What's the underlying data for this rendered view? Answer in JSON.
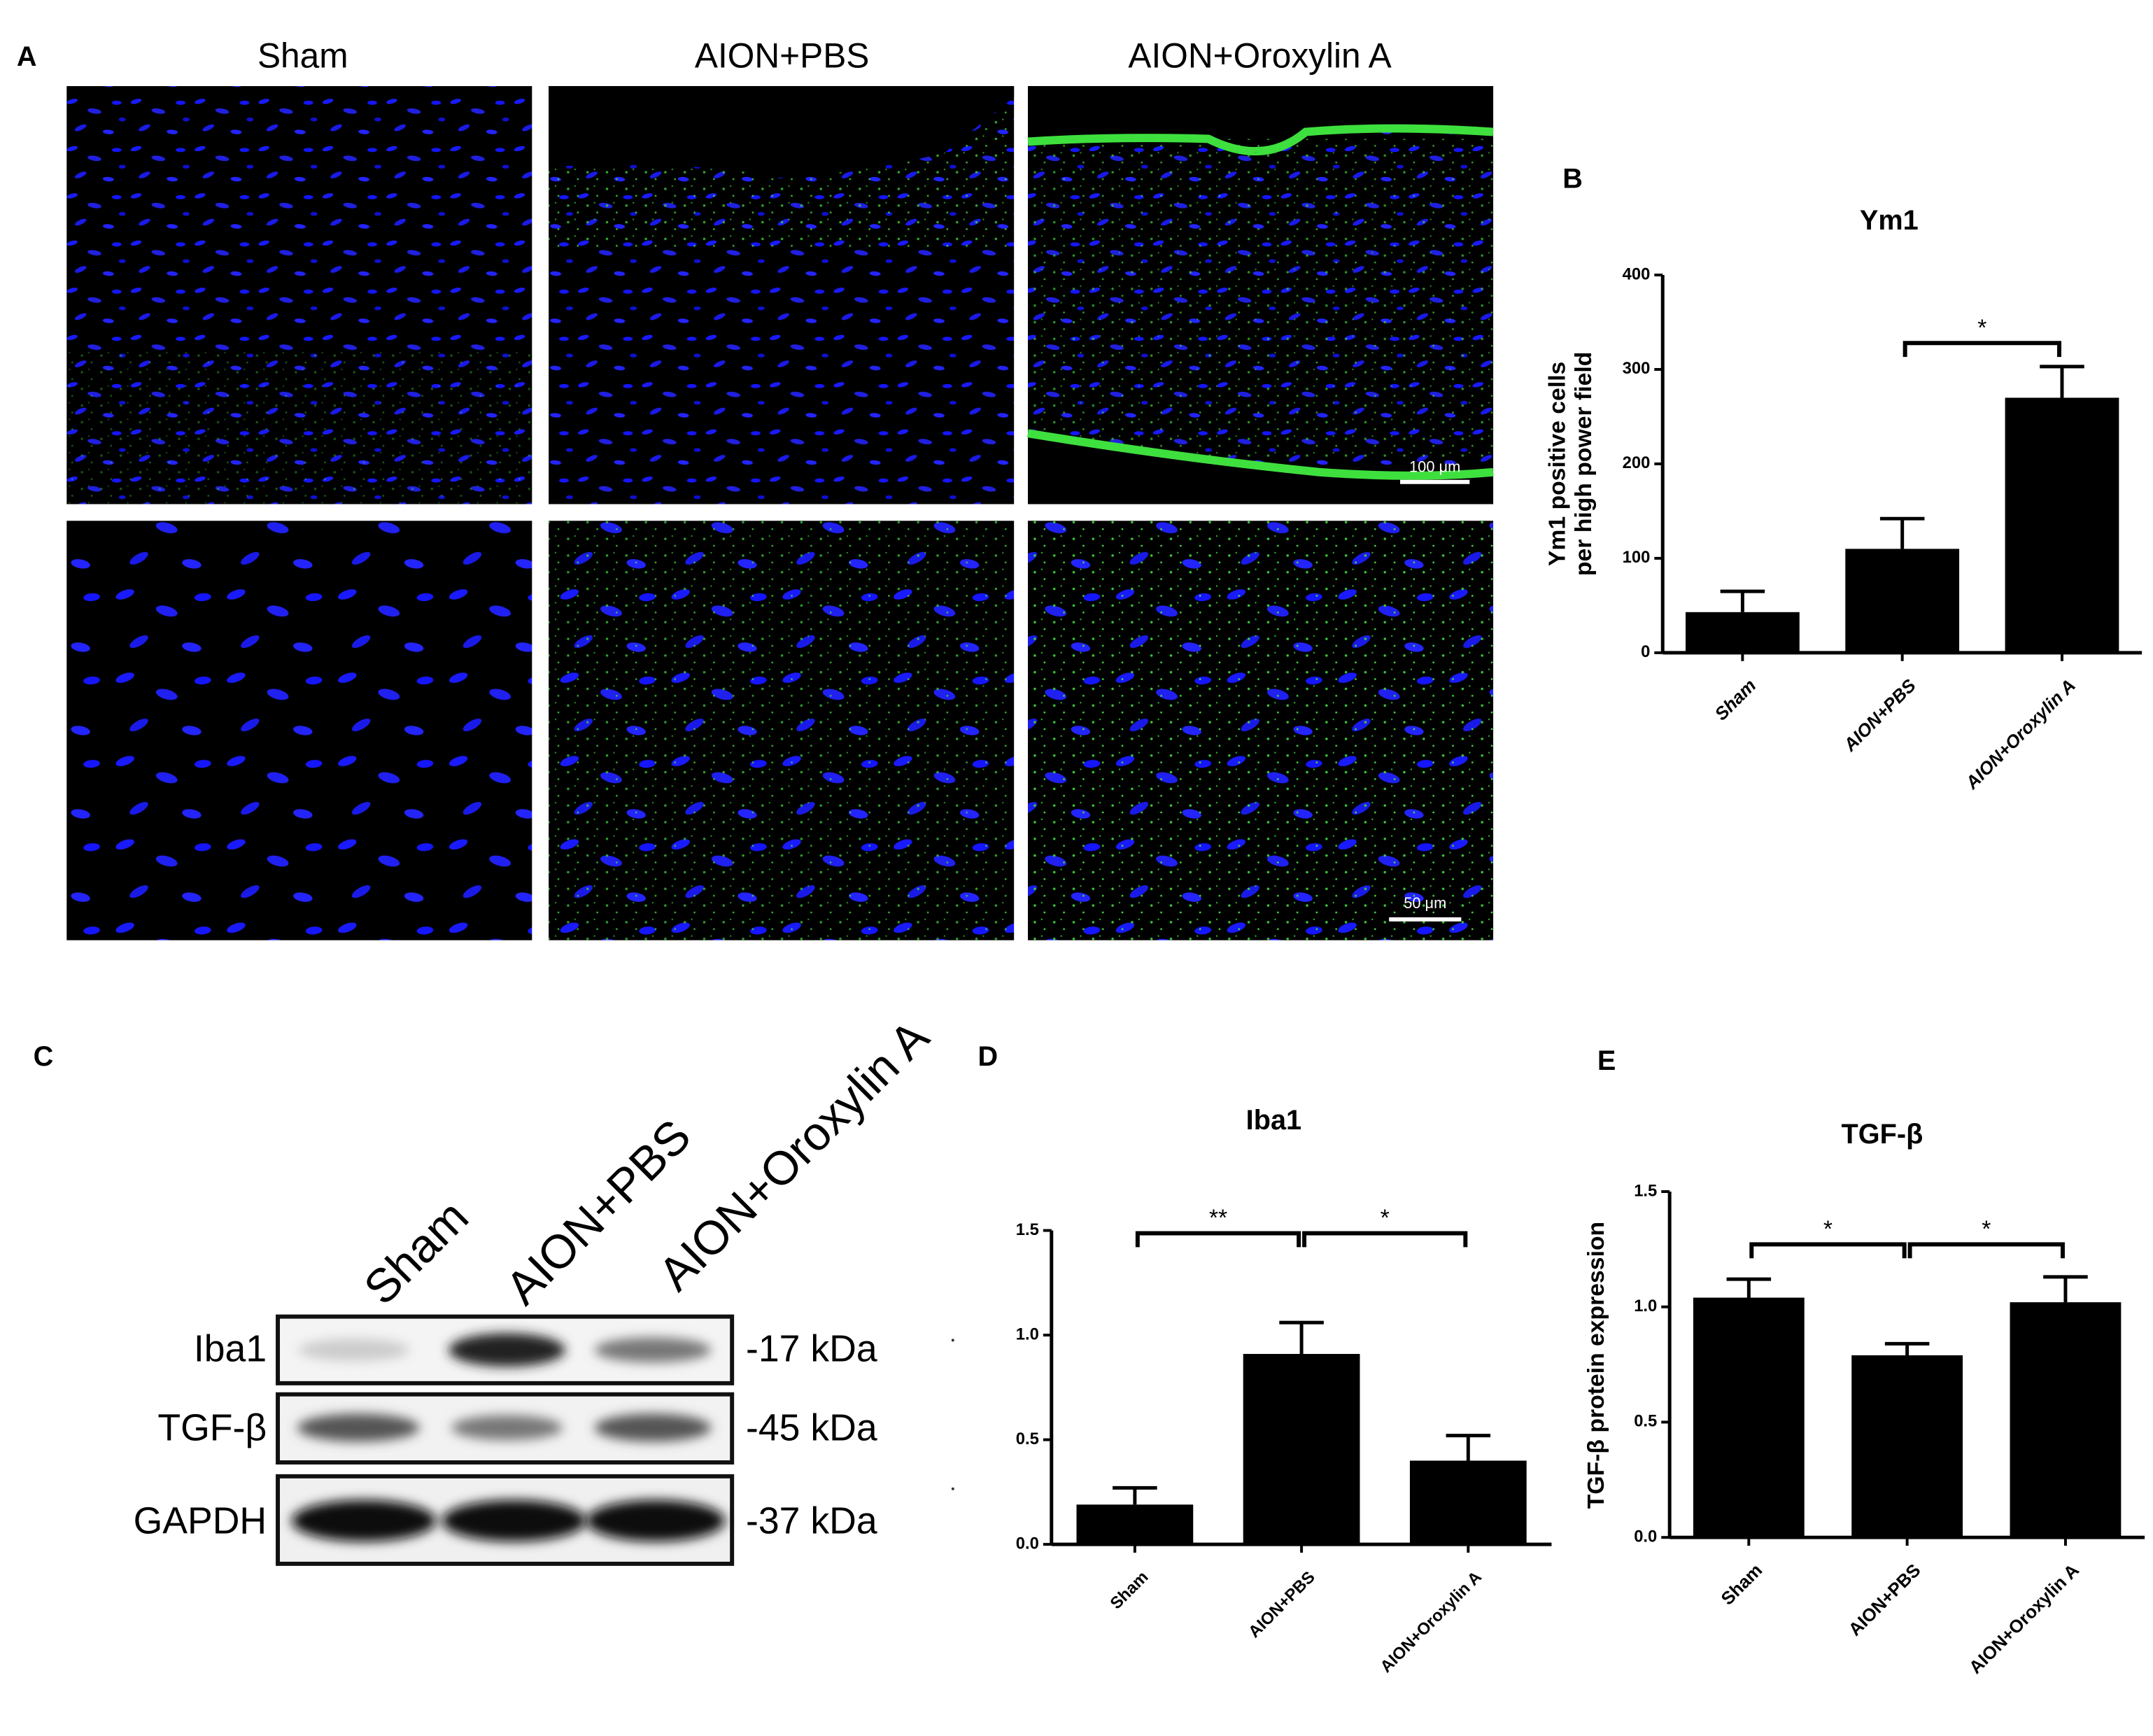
{
  "panel_labels": [
    "A",
    "B",
    "C",
    "D",
    "E"
  ],
  "microscopy": {
    "columns": [
      "Sham",
      "AION+PBS",
      "AION+Oroxylin A"
    ],
    "scale_bars": [
      "100 μm",
      "50 μm"
    ]
  },
  "western_blot": {
    "lanes": [
      "Sham",
      "AION+PBS",
      "AION+Oroxylin A"
    ],
    "rows": [
      {
        "protein": "Iba1",
        "size": "-17 kDa"
      },
      {
        "protein": "TGF-β",
        "size": "-45 kDa"
      },
      {
        "protein": "GAPDH",
        "size": "-37 kDa"
      }
    ]
  },
  "chart_data": [
    {
      "type": "bar",
      "title": "Ym1",
      "y_label": [
        "Ym1 positive cells",
        "per high power field"
      ],
      "categories": [
        "Sham",
        "AION+PBS",
        "AION+Oroxylin A"
      ],
      "values": [
        43,
        110,
        270
      ],
      "errors": [
        22,
        32,
        33
      ],
      "color": "#000000",
      "ylim": [
        0,
        400
      ],
      "yticks": [
        0,
        100,
        200,
        300,
        400
      ],
      "significance": [
        {
          "groups": [
            "AION+PBS",
            "AION+Oroxylin A"
          ],
          "label": "*"
        }
      ]
    },
    {
      "type": "bar",
      "title": "Iba1",
      "categories": [
        "Sham",
        "AION+PBS",
        "AION+Oroxylin A"
      ],
      "values": [
        0.19,
        0.91,
        0.4
      ],
      "errors": [
        0.08,
        0.15,
        0.12
      ],
      "color": "#000000",
      "ylim": [
        0,
        1.5
      ],
      "yticks": [
        {
          "value": 0,
          "label": "0.0"
        },
        0.5,
        {
          "value": 1,
          "label": "1.0"
        },
        1.5
      ],
      "significance": [
        {
          "groups": [
            "Sham",
            "AION+PBS"
          ],
          "label": "**"
        },
        {
          "groups": [
            "AION+PBS",
            "AION+Oroxylin A"
          ],
          "label": "*"
        }
      ]
    },
    {
      "type": "bar",
      "title": "TGF-β",
      "y_label": [
        "TGF-β protein expression"
      ],
      "categories": [
        "Sham",
        "AION+PBS",
        "AION+Oroxylin A"
      ],
      "values": [
        1.04,
        0.79,
        1.02
      ],
      "errors": [
        0.08,
        0.05,
        0.11
      ],
      "color": "#000000",
      "ylim": [
        0,
        1.5
      ],
      "yticks": [
        {
          "value": 0,
          "label": "0.0"
        },
        0.5,
        {
          "value": 1,
          "label": "1.0"
        },
        1.5
      ],
      "significance": [
        {
          "groups": [
            "Sham",
            "AION+PBS"
          ],
          "label": "*"
        },
        {
          "groups": [
            "AION+PBS",
            "AION+Oroxylin A"
          ],
          "label": "*"
        }
      ]
    }
  ]
}
